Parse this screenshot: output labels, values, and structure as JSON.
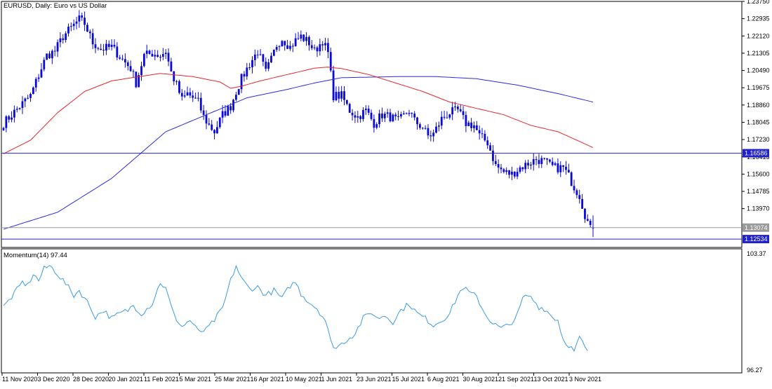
{
  "colors": {
    "background": "#ffffff",
    "frame": "#000000",
    "candle": "#0a0ad8",
    "ma_fast": "#e8262a",
    "ma_slow": "#2a2ae6",
    "hline": "#2222cc",
    "bid_line": "#9a9a9a",
    "momentum": "#3b9be4",
    "text": "#000000",
    "label_bg_current": "#ffffff"
  },
  "chart_data": [
    {
      "type": "candlestick",
      "title": "EURUSD, Daily:  Euro vs US Dollar",
      "ylim": [
        1.1214,
        1.2375
      ],
      "y_ticks": [
        "1.23750",
        "1.22935",
        "1.22120",
        "1.21305",
        "1.20490",
        "1.19675",
        "1.18860",
        "1.18045",
        "1.17230",
        "1.16415",
        "1.15600",
        "1.14785",
        "1.13970"
      ],
      "x_ticks": [
        "11 Nov 2020",
        "3 Dec 2020",
        "28 Dec 2020",
        "20 Jan 2021",
        "11 Feb 2021",
        "5 Mar 2021",
        "25 Mar 2021",
        "16 Apr 2021",
        "10 May 2021",
        "1 Jun 2021",
        "23 Jun 2021",
        "15 Jul 2021",
        "6 Aug 2021",
        "30 Aug 2021",
        "21 Sep 2021",
        "13 Oct 2021",
        "3 Nov 2021"
      ],
      "close_anchors": [
        [
          0,
          1.18
        ],
        [
          6,
          1.188
        ],
        [
          10,
          1.193
        ],
        [
          14,
          1.206
        ],
        [
          16,
          1.212
        ],
        [
          19,
          1.214
        ],
        [
          22,
          1.221
        ],
        [
          25,
          1.225
        ],
        [
          28,
          1.229
        ],
        [
          30,
          1.227
        ],
        [
          33,
          1.218
        ],
        [
          36,
          1.215
        ],
        [
          40,
          1.216
        ],
        [
          44,
          1.21
        ],
        [
          47,
          1.206
        ],
        [
          49,
          1.199
        ],
        [
          52,
          1.212
        ],
        [
          55,
          1.213
        ],
        [
          58,
          1.212
        ],
        [
          60,
          1.214
        ],
        [
          62,
          1.204
        ],
        [
          64,
          1.198
        ],
        [
          66,
          1.191
        ],
        [
          68,
          1.194
        ],
        [
          72,
          1.19
        ],
        [
          74,
          1.183
        ],
        [
          76,
          1.179
        ],
        [
          78,
          1.176
        ],
        [
          81,
          1.184
        ],
        [
          84,
          1.188
        ],
        [
          86,
          1.195
        ],
        [
          88,
          1.201
        ],
        [
          91,
          1.208
        ],
        [
          94,
          1.214
        ],
        [
          97,
          1.204
        ],
        [
          99,
          1.21
        ],
        [
          101,
          1.217
        ],
        [
          103,
          1.22
        ],
        [
          106,
          1.216
        ],
        [
          108,
          1.219
        ],
        [
          110,
          1.221
        ],
        [
          113,
          1.218
        ],
        [
          115,
          1.214
        ],
        [
          118,
          1.219
        ],
        [
          120,
          1.213
        ],
        [
          122,
          1.193
        ],
        [
          125,
          1.193
        ],
        [
          128,
          1.186
        ],
        [
          131,
          1.183
        ],
        [
          134,
          1.186
        ],
        [
          137,
          1.18
        ],
        [
          140,
          1.184
        ],
        [
          143,
          1.183
        ],
        [
          146,
          1.181
        ],
        [
          150,
          1.186
        ],
        [
          152,
          1.181
        ],
        [
          155,
          1.178
        ],
        [
          157,
          1.174
        ],
        [
          159,
          1.175
        ],
        [
          162,
          1.182
        ],
        [
          165,
          1.185
        ],
        [
          168,
          1.186
        ],
        [
          171,
          1.18
        ],
        [
          174,
          1.179
        ],
        [
          176,
          1.174
        ],
        [
          179,
          1.171
        ],
        [
          182,
          1.16
        ],
        [
          185,
          1.157
        ],
        [
          188,
          1.156
        ],
        [
          191,
          1.159
        ],
        [
          194,
          1.161
        ],
        [
          197,
          1.163
        ],
        [
          200,
          1.162
        ],
        [
          202,
          1.16
        ],
        [
          204,
          1.159
        ],
        [
          207,
          1.159
        ],
        [
          209,
          1.155
        ],
        [
          211,
          1.15
        ],
        [
          213,
          1.146
        ],
        [
          215,
          1.137
        ],
        [
          217,
          1.13
        ],
        [
          218,
          1.136
        ]
      ],
      "last_candle": {
        "open": 1.1307,
        "high": 1.1365,
        "low": 1.1263,
        "close": 1.1307
      },
      "ma_fast": {
        "name": "",
        "anchors": [
          [
            0,
            1.1656
          ],
          [
            10,
            1.172
          ],
          [
            20,
            1.185
          ],
          [
            30,
            1.195
          ],
          [
            40,
            1.2
          ],
          [
            50,
            1.202
          ],
          [
            58,
            1.2035
          ],
          [
            62,
            1.203
          ],
          [
            70,
            1.202
          ],
          [
            80,
            1.1995
          ],
          [
            84,
            1.1965
          ],
          [
            88,
            1.1975
          ],
          [
            95,
            1.2
          ],
          [
            105,
            1.203
          ],
          [
            115,
            1.206
          ],
          [
            120,
            1.2065
          ],
          [
            125,
            1.2058
          ],
          [
            135,
            1.203
          ],
          [
            145,
            1.199
          ],
          [
            155,
            1.195
          ],
          [
            165,
            1.19
          ],
          [
            175,
            1.187
          ],
          [
            185,
            1.184
          ],
          [
            195,
            1.179
          ],
          [
            205,
            1.176
          ],
          [
            212,
            1.172
          ],
          [
            218,
            1.1685
          ]
        ]
      },
      "ma_slow": {
        "name": "",
        "anchors": [
          [
            0,
            1.13
          ],
          [
            20,
            1.138
          ],
          [
            40,
            1.154
          ],
          [
            60,
            1.176
          ],
          [
            75,
            1.184
          ],
          [
            90,
            1.192
          ],
          [
            105,
            1.196
          ],
          [
            115,
            1.199
          ],
          [
            125,
            1.2015
          ],
          [
            145,
            1.202
          ],
          [
            160,
            1.202
          ],
          [
            175,
            1.201
          ],
          [
            190,
            1.198
          ],
          [
            205,
            1.194
          ],
          [
            218,
            1.19
          ]
        ]
      },
      "hlines": [
        {
          "value": 1.16586,
          "label": "1.16586",
          "role": "support"
        },
        {
          "value": 1.13074,
          "label": "1.13074",
          "role": "current"
        },
        {
          "value": 1.12534,
          "label": "1.12534",
          "role": "bid"
        }
      ]
    },
    {
      "type": "line",
      "title": "Momentum(14) 97.44",
      "ylim": [
        96.27,
        103.37
      ],
      "y_ticks": [
        "103.37",
        "96.27"
      ],
      "series": [
        {
          "name": "Momentum(14)",
          "anchors": [
            [
              0,
              100.1
            ],
            [
              4,
              100.9
            ],
            [
              7,
              101.6
            ],
            [
              9,
              101.4
            ],
            [
              11,
              102.1
            ],
            [
              13,
              101.7
            ],
            [
              15,
              102.4
            ],
            [
              17,
              102.6
            ],
            [
              19,
              102.3
            ],
            [
              21,
              101.9
            ],
            [
              23,
              101.5
            ],
            [
              26,
              100.8
            ],
            [
              28,
              101.1
            ],
            [
              31,
              100.4
            ],
            [
              34,
              99.5
            ],
            [
              37,
              99.9
            ],
            [
              40,
              99.4
            ],
            [
              43,
              99.7
            ],
            [
              46,
              99.9
            ],
            [
              48,
              100.2
            ],
            [
              51,
              99.7
            ],
            [
              55,
              100.3
            ],
            [
              58,
              101.6
            ],
            [
              60,
              101.2
            ],
            [
              63,
              99.6
            ],
            [
              66,
              98.9
            ],
            [
              69,
              99.3
            ],
            [
              72,
              98.6
            ],
            [
              75,
              98.7
            ],
            [
              78,
              99.3
            ],
            [
              81,
              100.0
            ],
            [
              84,
              101.7
            ],
            [
              86,
              102.6
            ],
            [
              88,
              101.8
            ],
            [
              91,
              101.2
            ],
            [
              94,
              101.3
            ],
            [
              97,
              100.8
            ],
            [
              100,
              101.1
            ],
            [
              103,
              100.6
            ],
            [
              106,
              101.4
            ],
            [
              108,
              101.6
            ],
            [
              110,
              100.9
            ],
            [
              113,
              100.4
            ],
            [
              116,
              100.0
            ],
            [
              119,
              99.3
            ],
            [
              121,
              98.0
            ],
            [
              123,
              97.6
            ],
            [
              126,
              98.0
            ],
            [
              130,
              98.5
            ],
            [
              133,
              99.4
            ],
            [
              136,
              99.8
            ],
            [
              138,
              99.4
            ],
            [
              141,
              99.6
            ],
            [
              144,
              99.2
            ],
            [
              147,
              99.9
            ],
            [
              150,
              100.3
            ],
            [
              153,
              99.7
            ],
            [
              156,
              99.4
            ],
            [
              159,
              99.0
            ],
            [
              162,
              99.3
            ],
            [
              165,
              99.7
            ],
            [
              168,
              100.8
            ],
            [
              170,
              101.3
            ],
            [
              172,
              101.0
            ],
            [
              175,
              100.7
            ],
            [
              178,
              99.7
            ],
            [
              181,
              99.1
            ],
            [
              184,
              98.8
            ],
            [
              187,
              99.0
            ],
            [
              190,
              99.6
            ],
            [
              192,
              100.6
            ],
            [
              194,
              100.8
            ],
            [
              196,
              100.5
            ],
            [
              198,
              100.1
            ],
            [
              200,
              100.0
            ],
            [
              203,
              99.5
            ],
            [
              205,
              99.3
            ],
            [
              207,
              98.1
            ],
            [
              209,
              97.8
            ],
            [
              211,
              97.4
            ],
            [
              213,
              98.2
            ],
            [
              214,
              98.0
            ],
            [
              215,
              97.6
            ],
            [
              216,
              97.44
            ]
          ]
        }
      ]
    }
  ]
}
